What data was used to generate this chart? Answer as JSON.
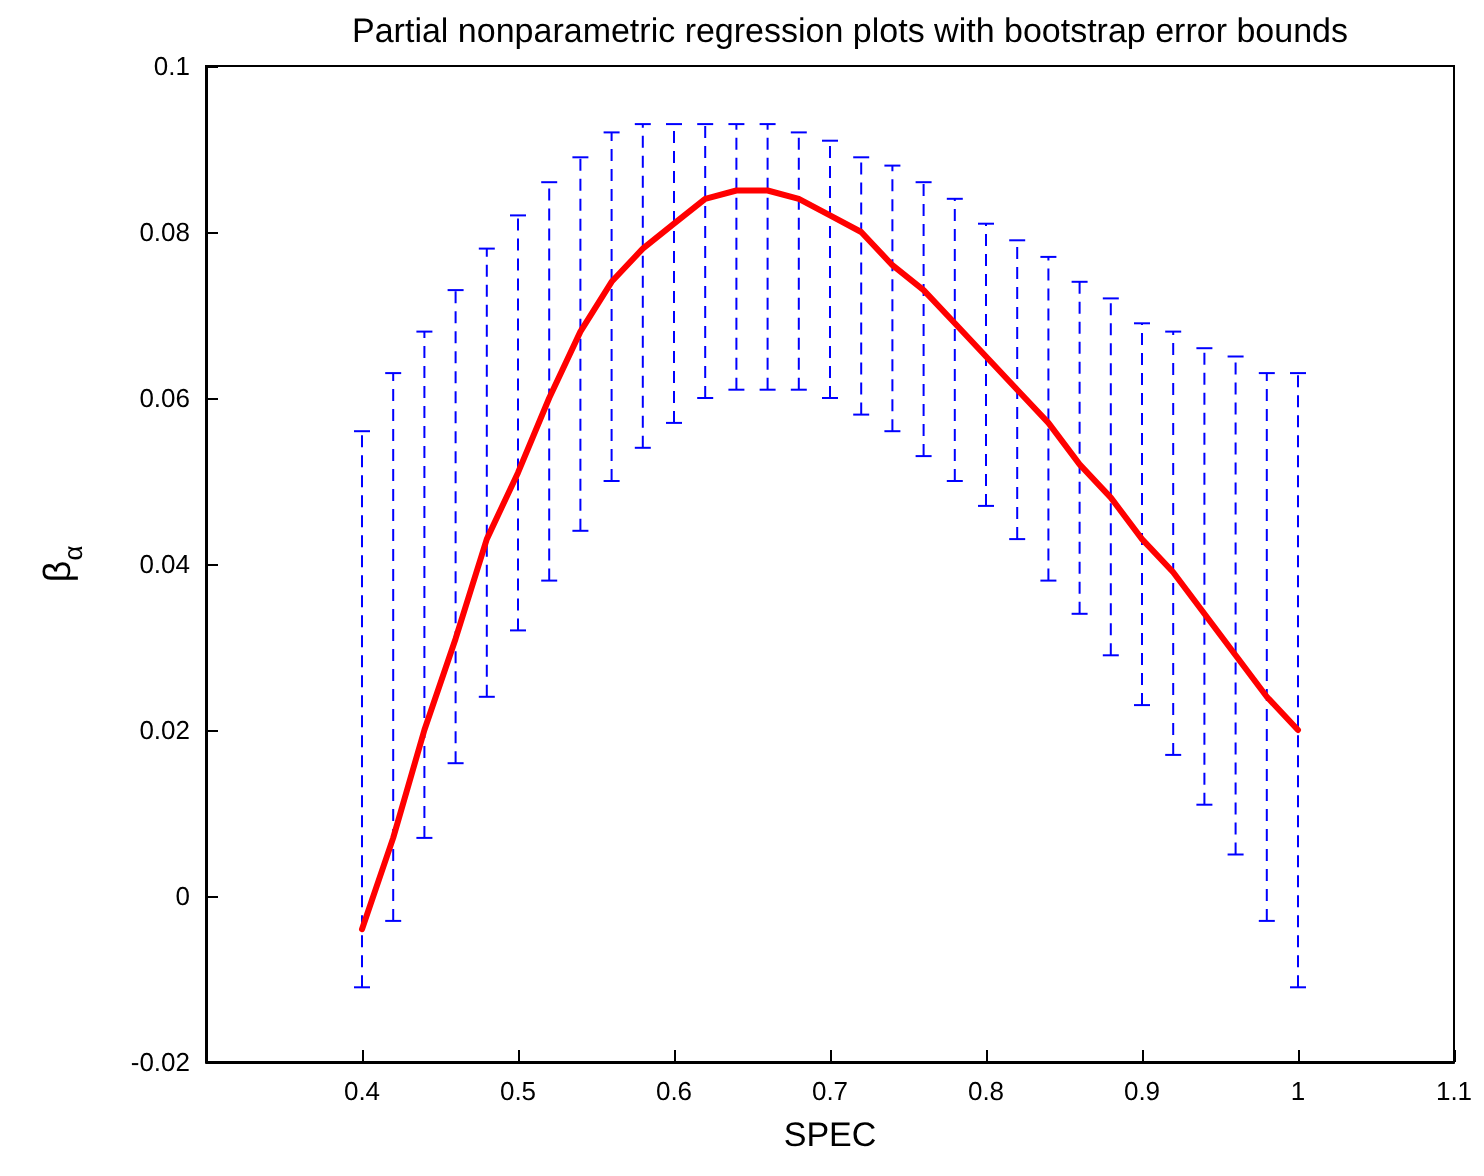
{
  "chart_data": {
    "type": "line",
    "title": "Partial nonparametric regression plots with bootstrap error bounds",
    "xlabel": "SPEC",
    "ylabel": "β$_{α}$",
    "x": [
      0.4,
      0.42,
      0.44,
      0.46,
      0.48,
      0.5,
      0.52,
      0.54,
      0.56,
      0.58,
      0.6,
      0.62,
      0.64,
      0.66,
      0.68,
      0.7,
      0.72,
      0.74,
      0.76,
      0.78,
      0.8,
      0.82,
      0.84,
      0.86,
      0.88,
      0.9,
      0.92,
      0.94,
      0.96,
      0.98,
      1.0
    ],
    "series": [
      {
        "color": "#ff0000",
        "values": [
          -0.004,
          0.007,
          0.02,
          0.031,
          0.043,
          0.051,
          0.06,
          0.068,
          0.074,
          0.078,
          0.081,
          0.084,
          0.085,
          0.085,
          0.084,
          0.082,
          0.08,
          0.076,
          0.073,
          0.069,
          0.065,
          0.061,
          0.057,
          0.052,
          0.048,
          0.043,
          0.039,
          0.034,
          0.029,
          0.024,
          0.02
        ],
        "errors": [
          [
            -0.011,
            0.056
          ],
          [
            -0.003,
            0.063
          ],
          [
            0.007,
            0.068
          ],
          [
            0.016,
            0.073
          ],
          [
            0.024,
            0.078
          ],
          [
            0.032,
            0.082
          ],
          [
            0.038,
            0.086
          ],
          [
            0.044,
            0.089
          ],
          [
            0.05,
            0.092
          ],
          [
            0.054,
            0.093
          ],
          [
            0.057,
            0.093
          ],
          [
            0.06,
            0.093
          ],
          [
            0.061,
            0.093
          ],
          [
            0.061,
            0.093
          ],
          [
            0.061,
            0.092
          ],
          [
            0.06,
            0.091
          ],
          [
            0.058,
            0.089
          ],
          [
            0.056,
            0.088
          ],
          [
            0.053,
            0.086
          ],
          [
            0.05,
            0.084
          ],
          [
            0.047,
            0.081
          ],
          [
            0.043,
            0.079
          ],
          [
            0.038,
            0.077
          ],
          [
            0.034,
            0.074
          ],
          [
            0.029,
            0.072
          ],
          [
            0.023,
            0.069
          ],
          [
            0.017,
            0.068
          ],
          [
            0.011,
            0.066
          ],
          [
            0.005,
            0.065
          ],
          [
            -0.003,
            0.063
          ],
          [
            -0.011,
            0.063
          ]
        ]
      }
    ],
    "xlim": [
      0.3,
      1.1
    ],
    "xticks": [
      0.4,
      0.5,
      0.6,
      0.7,
      0.8,
      0.9,
      1,
      1.1
    ],
    "ylim": [
      -0.02,
      0.1
    ],
    "yticks": [
      -0.02,
      0,
      0.02,
      0.04,
      0.06,
      0.08,
      0.1
    ],
    "grid": false,
    "marker": "none",
    "line_style": "solid"
  }
}
